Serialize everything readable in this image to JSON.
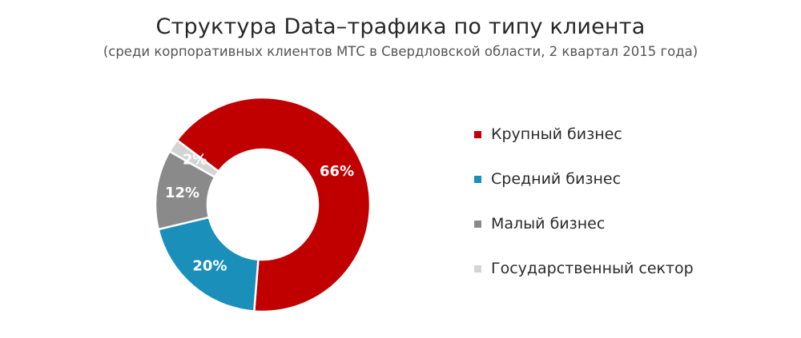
{
  "chart_data": {
    "type": "pie",
    "title": "Структура Data–трафика по типу клиента",
    "subtitle": "(среди корпоративных клиентов МТС в Свердловской области, 2 квартал 2015 года)",
    "categories": [
      "Крупный бизнес",
      "Средний бизнес",
      "Малый бизнес",
      "Государственный сектор"
    ],
    "values": [
      66,
      20,
      12,
      2
    ],
    "value_labels": [
      "66%",
      "20%",
      "12%",
      "2%"
    ],
    "colors": [
      "#c00000",
      "#1a8fb9",
      "#8a8a8a",
      "#d4d4d4"
    ],
    "donut": true,
    "legend_position": "right"
  }
}
